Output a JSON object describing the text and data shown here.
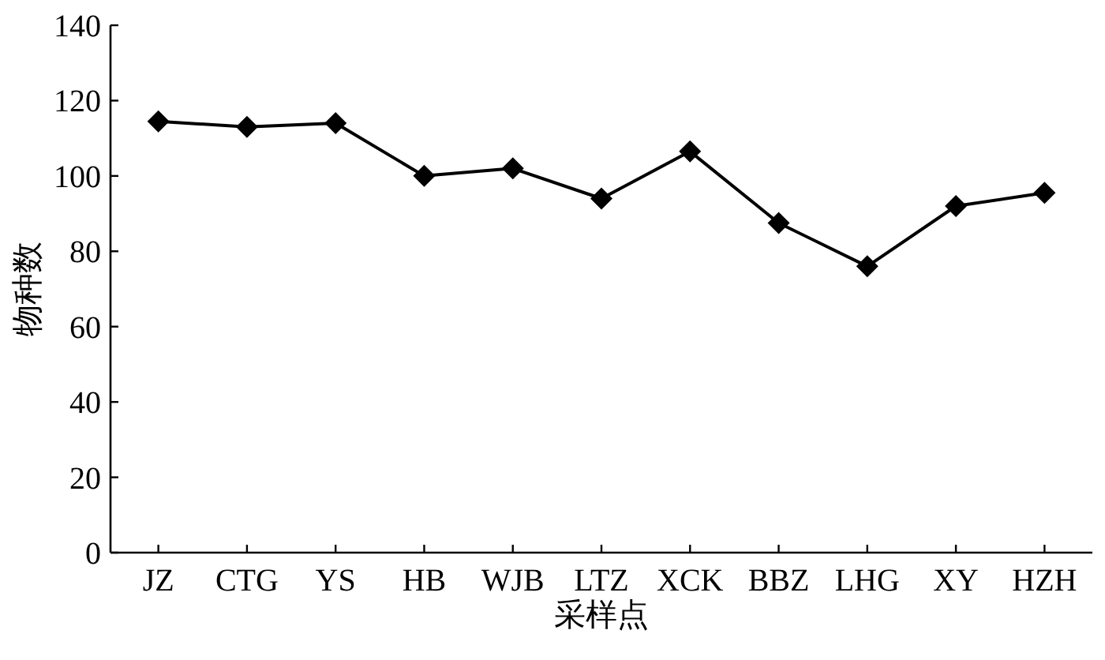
{
  "chart_data": {
    "type": "line",
    "xlabel": "采样点",
    "ylabel": "物种数",
    "categories": [
      "JZ",
      "CTG",
      "YS",
      "HB",
      "WJB",
      "LTZ",
      "XCK",
      "BBZ",
      "LHG",
      "XY",
      "HZH"
    ],
    "series": [
      {
        "color": "#000000",
        "values": [
          114.5,
          113,
          114,
          100,
          102,
          94,
          106.5,
          87.5,
          76,
          92,
          95.5
        ]
      }
    ],
    "ylim": [
      0,
      140
    ],
    "yticks": [
      0,
      20,
      40,
      60,
      80,
      100,
      120,
      140
    ],
    "marker": "diamond",
    "line_style": "solid"
  }
}
